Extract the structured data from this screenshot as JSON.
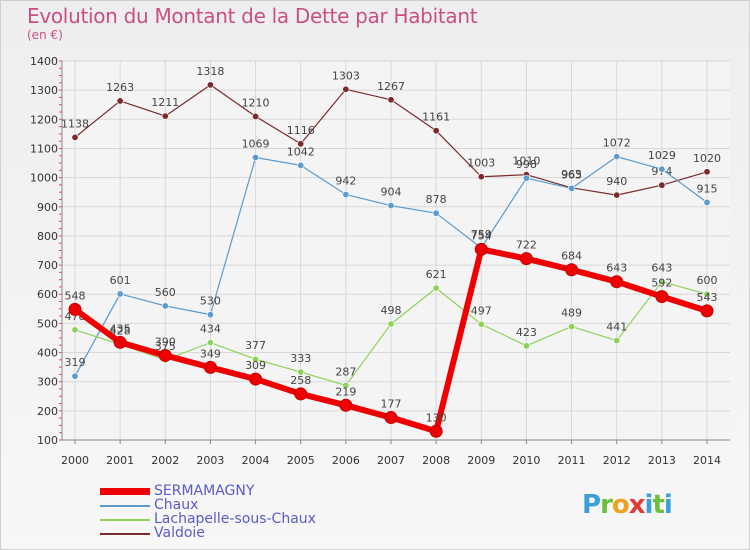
{
  "title": "Evolution du Montant de la Dette par Habitant",
  "subtitle": "(en €)",
  "logo": {
    "letters": [
      "P",
      "r",
      "o",
      "x",
      "i",
      "t",
      "i"
    ],
    "colors": [
      "#3aa0d8",
      "#6cbf3a",
      "#f0a020",
      "#e03a3a",
      "#3aa0d8",
      "#6cbf3a",
      "#3aa0d8"
    ]
  },
  "chart_data": {
    "type": "line",
    "ylim": [
      100,
      1400
    ],
    "yticks": [
      100,
      200,
      300,
      400,
      500,
      600,
      700,
      800,
      900,
      1000,
      1100,
      1200,
      1300,
      1400
    ],
    "x": [
      "2000",
      "2001",
      "2002",
      "2003",
      "2004",
      "2005",
      "2006",
      "2007",
      "2008",
      "2009",
      "2010",
      "2011",
      "2012",
      "2013",
      "2014"
    ],
    "grid": true,
    "legend": "bottom-left",
    "series": [
      {
        "name": "Valdoie",
        "color": "#7a2a2a",
        "width": 1.2,
        "values": [
          1138,
          1263,
          1211,
          1318,
          1210,
          1116,
          1303,
          1267,
          1161,
          1003,
          1010,
          965,
          940,
          974,
          1020
        ]
      },
      {
        "name": "Chaux",
        "color": "#5b9bd0",
        "width": 1.2,
        "values": [
          319,
          601,
          560,
          530,
          1069,
          1042,
          942,
          904,
          878,
          759,
          998,
          963,
          1072,
          1029,
          915
        ]
      },
      {
        "name": "Lachapelle-sous-Chaux",
        "color": "#8fd25a",
        "width": 1.2,
        "values": [
          478,
          428,
          375,
          434,
          377,
          333,
          287,
          498,
          621,
          497,
          423,
          489,
          441,
          643,
          600
        ]
      },
      {
        "name": "SERMAMAGNY",
        "color": "#ee0000",
        "width": 6,
        "values": [
          548,
          435,
          390,
          349,
          309,
          258,
          219,
          177,
          130,
          754,
          722,
          684,
          643,
          592,
          543
        ]
      }
    ]
  }
}
